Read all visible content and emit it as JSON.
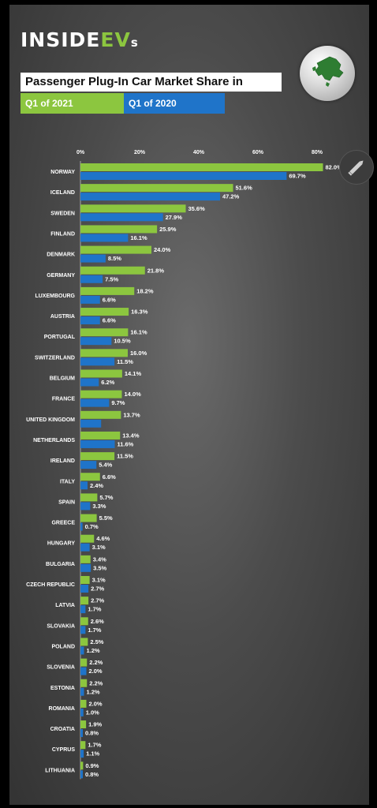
{
  "brand": {
    "name_pre": "INSIDE",
    "name_ev": "EV",
    "name_s": "s"
  },
  "title": "Passenger Plug-In Car Market Share in Europe",
  "legend": {
    "q2021": "Q1 of 2021",
    "q2020": "Q1 of 2020"
  },
  "colors": {
    "q2021": "#8cc63f",
    "q2020": "#1f74c9",
    "globe_land": "#2e7d32"
  },
  "icons": {
    "globe": "europe-globe-icon",
    "edit": "pencil-edit-icon"
  },
  "chart_data": {
    "type": "bar",
    "orientation": "horizontal",
    "title": "Passenger Plug-In Car Market Share in Europe",
    "xlim": [
      0,
      90
    ],
    "ticks": [
      0,
      20,
      40,
      60,
      80
    ],
    "tick_labels": [
      "0%",
      "20%",
      "40%",
      "60%",
      "80%"
    ],
    "legend": "top-left",
    "categories": [
      "NORWAY",
      "ICELAND",
      "SWEDEN",
      "FINLAND",
      "DENMARK",
      "GERMANY",
      "LUXEMBOURG",
      "AUSTRIA",
      "PORTUGAL",
      "SWITZERLAND",
      "BELGIUM",
      "FRANCE",
      "UNITED KINGDOM",
      "NETHERLANDS",
      "IRELAND",
      "ITALY",
      "SPAIN",
      "GREECE",
      "HUNGARY",
      "BULGARIA",
      "CZECH REPUBLIC",
      "LATVIA",
      "SLOVAKIA",
      "POLAND",
      "SLOVENIA",
      "ESTONIA",
      "ROMANIA",
      "CROATIA",
      "CYPRUS",
      "LITHUANIA"
    ],
    "series": [
      {
        "name": "Q1 of 2021",
        "values": [
          82.0,
          51.6,
          35.6,
          25.9,
          24.0,
          21.8,
          18.2,
          16.3,
          16.1,
          16.0,
          14.1,
          14.0,
          13.7,
          13.4,
          11.5,
          6.6,
          5.7,
          5.5,
          4.6,
          3.4,
          3.1,
          2.7,
          2.6,
          2.5,
          2.2,
          2.2,
          2.0,
          1.9,
          1.7,
          0.9
        ],
        "labels": [
          "82.0%",
          "51.6%",
          "35.6%",
          "25.9%",
          "24.0%",
          "21.8%",
          "18.2%",
          "16.3%",
          "16.1%",
          "16.0%",
          "14.1%",
          "14.0%",
          "13.7%",
          "13.4%",
          "11.5%",
          "6.6%",
          "5.7%",
          "5.5%",
          "4.6%",
          "3.4%",
          "3.1%",
          "2.7%",
          "2.6%",
          "2.5%",
          "2.2%",
          "2.2%",
          "2.0%",
          "1.9%",
          "1.7%",
          "0.9%"
        ]
      },
      {
        "name": "Q1 of 2020",
        "values": [
          69.7,
          47.2,
          27.9,
          16.1,
          8.5,
          7.5,
          6.6,
          6.6,
          10.5,
          11.5,
          6.2,
          9.7,
          7.0,
          11.6,
          5.4,
          2.4,
          3.3,
          0.7,
          3.1,
          3.5,
          2.7,
          1.7,
          1.7,
          1.2,
          2.0,
          1.2,
          1.0,
          0.8,
          1.1,
          0.8
        ],
        "labels": [
          "69.7%",
          "47.2%",
          "27.9%",
          "16.1%",
          "8.5%",
          "7.5%",
          "6.6%",
          "6.6%",
          "10.5%",
          "11.5%",
          "6.2%",
          "9.7%",
          "",
          "11.6%",
          "5.4%",
          "2.4%",
          "3.3%",
          "0.7%",
          "3.1%",
          "3.5%",
          "2.7%",
          "1.7%",
          "1.7%",
          "1.2%",
          "2.0%",
          "1.2%",
          "1.0%",
          "0.8%",
          "1.1%",
          "0.8%"
        ]
      }
    ]
  }
}
